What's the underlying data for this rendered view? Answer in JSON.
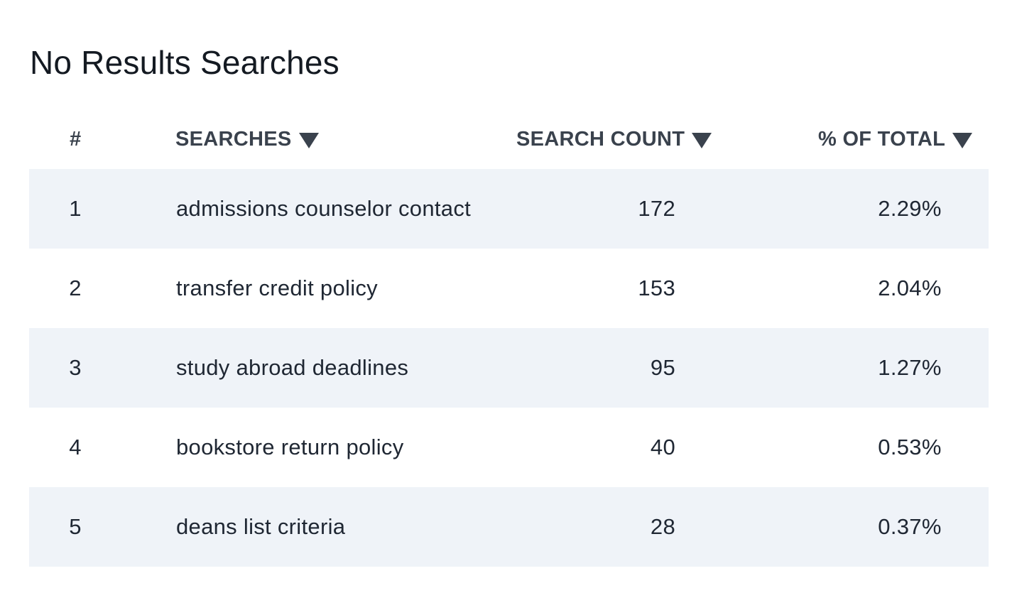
{
  "panel": {
    "title": "No Results Searches"
  },
  "table": {
    "headers": {
      "num": "#",
      "searches": "SEARCHES",
      "count": "SEARCH COUNT",
      "pct": "% OF TOTAL"
    },
    "sort_icon": "caret-down-icon",
    "rows": [
      {
        "num": "1",
        "search": "admissions counselor contact",
        "count": "172",
        "pct": "2.29%"
      },
      {
        "num": "2",
        "search": "transfer credit policy",
        "count": "153",
        "pct": "2.04%"
      },
      {
        "num": "3",
        "search": "study abroad deadlines",
        "count": "95",
        "pct": "1.27%"
      },
      {
        "num": "4",
        "search": "bookstore return policy",
        "count": "40",
        "pct": "0.53%"
      },
      {
        "num": "5",
        "search": "deans list criteria",
        "count": "28",
        "pct": "0.37%"
      }
    ]
  },
  "colors": {
    "stripe": "#eff3f8",
    "header_text": "#3a424d",
    "body_text": "#1f2733"
  }
}
